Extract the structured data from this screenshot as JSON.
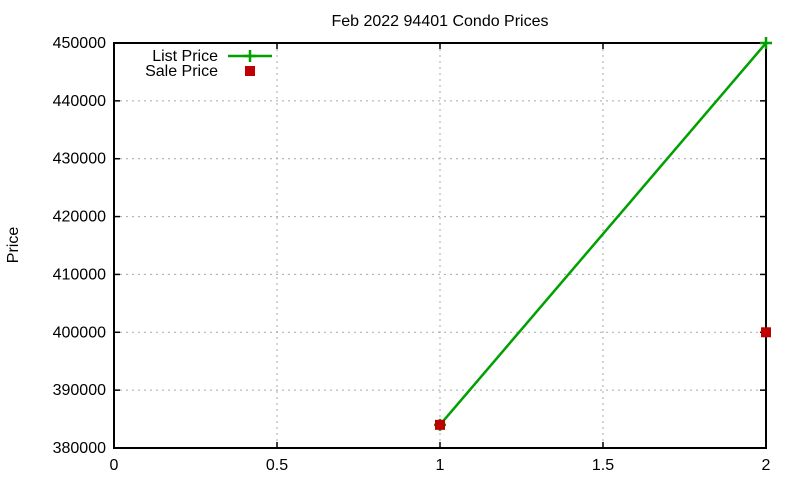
{
  "chart_data": {
    "type": "line",
    "title": "Feb 2022 94401 Condo Prices",
    "xlabel": "",
    "ylabel": "Price",
    "xlim": [
      0,
      2
    ],
    "ylim": [
      380000,
      450000
    ],
    "x_ticks": [
      0,
      0.5,
      1,
      1.5,
      2
    ],
    "x_tick_labels": [
      "0",
      "0.5",
      "1",
      "1.5",
      "2"
    ],
    "y_ticks": [
      380000,
      390000,
      400000,
      410000,
      420000,
      430000,
      440000,
      450000
    ],
    "y_tick_labels": [
      "380000",
      "390000",
      "400000",
      "410000",
      "420000",
      "430000",
      "440000",
      "450000"
    ],
    "grid": true,
    "legend_position": "top-left-inside",
    "background_color": "#ffffff",
    "axis_color": "#000000",
    "grid_color": "#a8a8a8",
    "series": [
      {
        "name": "List Price",
        "style": "line+points",
        "marker": "plus",
        "color": "#00a000",
        "x": [
          1,
          2
        ],
        "y": [
          384000,
          450000
        ]
      },
      {
        "name": "Sale Price",
        "style": "points",
        "marker": "square",
        "color": "#c00000",
        "x": [
          1,
          2
        ],
        "y": [
          384000,
          400000
        ]
      }
    ]
  }
}
